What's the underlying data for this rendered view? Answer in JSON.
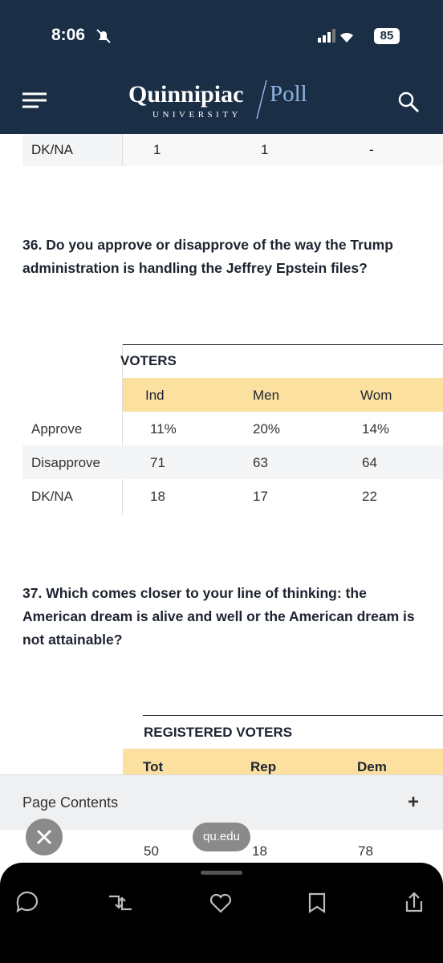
{
  "status_bar": {
    "time": "8:06",
    "battery": "85"
  },
  "header": {
    "brand": "Quinnipiac",
    "brand_suffix": "Poll",
    "subtitle": "UNIVERSITY"
  },
  "previous_table": {
    "rows": [
      [
        "DK/NA",
        "1",
        "1",
        "-"
      ]
    ]
  },
  "q36": {
    "question": "36. Do you approve or disapprove of the way the Trump administration is handling the Jeffrey Epstein files?",
    "table": {
      "group": "VOTERS",
      "columns": [
        "Ind",
        "Men",
        "Wom"
      ],
      "rows": [
        [
          "Approve",
          "11%",
          "20%",
          "14%"
        ],
        [
          "Disapprove",
          "71",
          "63",
          "64"
        ],
        [
          "DK/NA",
          "18",
          "17",
          "22"
        ]
      ]
    }
  },
  "q37": {
    "question": "37. Which comes closer to your line of thinking: the American dream is alive and well or the American dream is not attainable?",
    "table": {
      "group": "REGISTERED VOTERS",
      "columns": [
        "Tot",
        "Rep",
        "Dem"
      ],
      "rows": [
        [
          "50",
          "18",
          "78"
        ]
      ]
    }
  },
  "page_contents": {
    "label": "Page Contents",
    "toggle": "+"
  },
  "browser": {
    "url": "qu.edu"
  }
}
